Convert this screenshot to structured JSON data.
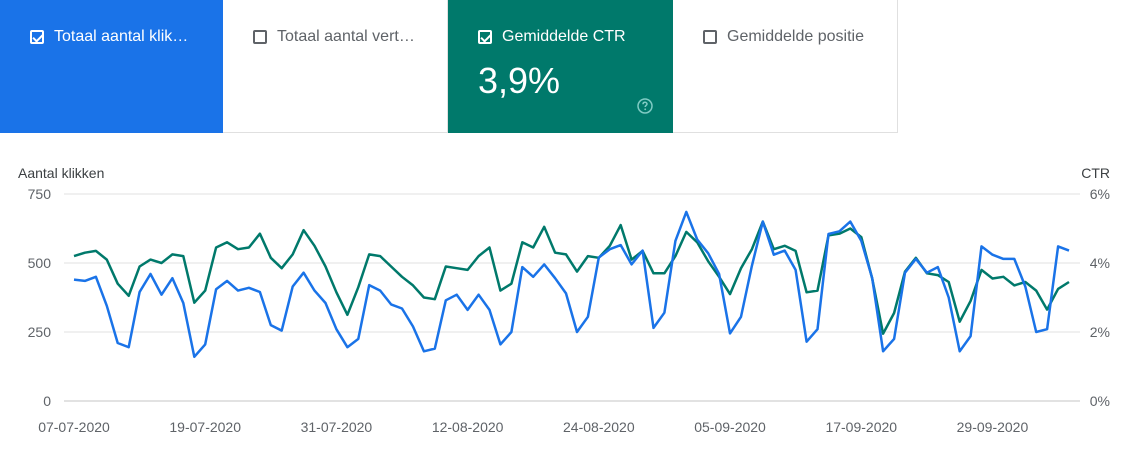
{
  "cards": [
    {
      "label": "Totaal aantal klik…",
      "checked": true,
      "value": ""
    },
    {
      "label": "Totaal aantal vert…",
      "checked": false,
      "value": ""
    },
    {
      "label": "Gemiddelde CTR",
      "checked": true,
      "value": "3,9%"
    },
    {
      "label": "Gemiddelde positie",
      "checked": false,
      "value": ""
    }
  ],
  "icons": {
    "help": "help-circle-icon"
  },
  "colors": {
    "clicks": "#1a73e8",
    "ctr": "#00796b",
    "grid": "#e0e0e0"
  },
  "chart_data": {
    "type": "line",
    "yleft": {
      "label": "Aantal klikken",
      "ticks": [
        "0",
        "250",
        "500",
        "750"
      ],
      "range": [
        0,
        750
      ]
    },
    "yright": {
      "label": "CTR",
      "ticks": [
        "0%",
        "2%",
        "4%",
        "6%"
      ],
      "range": [
        0,
        6
      ]
    },
    "xticks": [
      {
        "index": 0,
        "label": "07-07-2020"
      },
      {
        "index": 12,
        "label": "19-07-2020"
      },
      {
        "index": 24,
        "label": "31-07-2020"
      },
      {
        "index": 36,
        "label": "12-08-2020"
      },
      {
        "index": 48,
        "label": "24-08-2020"
      },
      {
        "index": 60,
        "label": "05-09-2020"
      },
      {
        "index": 72,
        "label": "17-09-2020"
      },
      {
        "index": 84,
        "label": "29-09-2020"
      }
    ],
    "x_start": "07-07-2020",
    "x_end": "09-10-2020",
    "grid": true,
    "series": [
      {
        "name": "Totaal aantal klikken",
        "axis": "left",
        "color": "#1a73e8",
        "values": [
          440,
          435,
          450,
          345,
          210,
          195,
          395,
          460,
          385,
          445,
          355,
          160,
          205,
          405,
          435,
          400,
          410,
          395,
          275,
          255,
          415,
          465,
          400,
          355,
          260,
          195,
          225,
          420,
          400,
          350,
          335,
          270,
          180,
          190,
          365,
          385,
          330,
          385,
          330,
          205,
          250,
          485,
          450,
          495,
          445,
          390,
          250,
          305,
          520,
          550,
          565,
          495,
          545,
          265,
          320,
          580,
          685,
          585,
          535,
          460,
          245,
          305,
          490,
          650,
          530,
          545,
          475,
          215,
          260,
          605,
          615,
          650,
          580,
          445,
          180,
          225,
          465,
          515,
          465,
          485,
          375,
          180,
          235,
          560,
          530,
          515,
          515,
          415,
          250,
          260,
          560,
          545
        ]
      },
      {
        "name": "Gemiddelde CTR",
        "axis": "right",
        "color": "#00796b",
        "values": [
          4.2,
          4.3,
          4.35,
          4.1,
          3.4,
          3.05,
          3.9,
          4.1,
          4.0,
          4.25,
          4.2,
          2.85,
          3.2,
          4.45,
          4.6,
          4.4,
          4.45,
          4.85,
          4.15,
          3.85,
          4.25,
          4.95,
          4.5,
          3.9,
          3.15,
          2.5,
          3.3,
          4.25,
          4.2,
          3.9,
          3.6,
          3.35,
          3.0,
          2.95,
          3.9,
          3.85,
          3.8,
          4.2,
          4.45,
          3.2,
          3.4,
          4.6,
          4.45,
          5.05,
          4.3,
          4.25,
          3.75,
          4.2,
          4.15,
          4.5,
          5.1,
          4.1,
          4.35,
          3.7,
          3.7,
          4.2,
          4.9,
          4.6,
          4.05,
          3.6,
          3.1,
          3.85,
          4.4,
          5.2,
          4.4,
          4.5,
          4.35,
          3.15,
          3.2,
          4.8,
          4.85,
          5.0,
          4.75,
          3.55,
          1.95,
          2.55,
          3.75,
          4.15,
          3.7,
          3.65,
          3.45,
          2.3,
          2.9,
          3.8,
          3.55,
          3.6,
          3.35,
          3.45,
          3.2,
          2.65,
          3.25,
          3.45
        ]
      }
    ]
  }
}
